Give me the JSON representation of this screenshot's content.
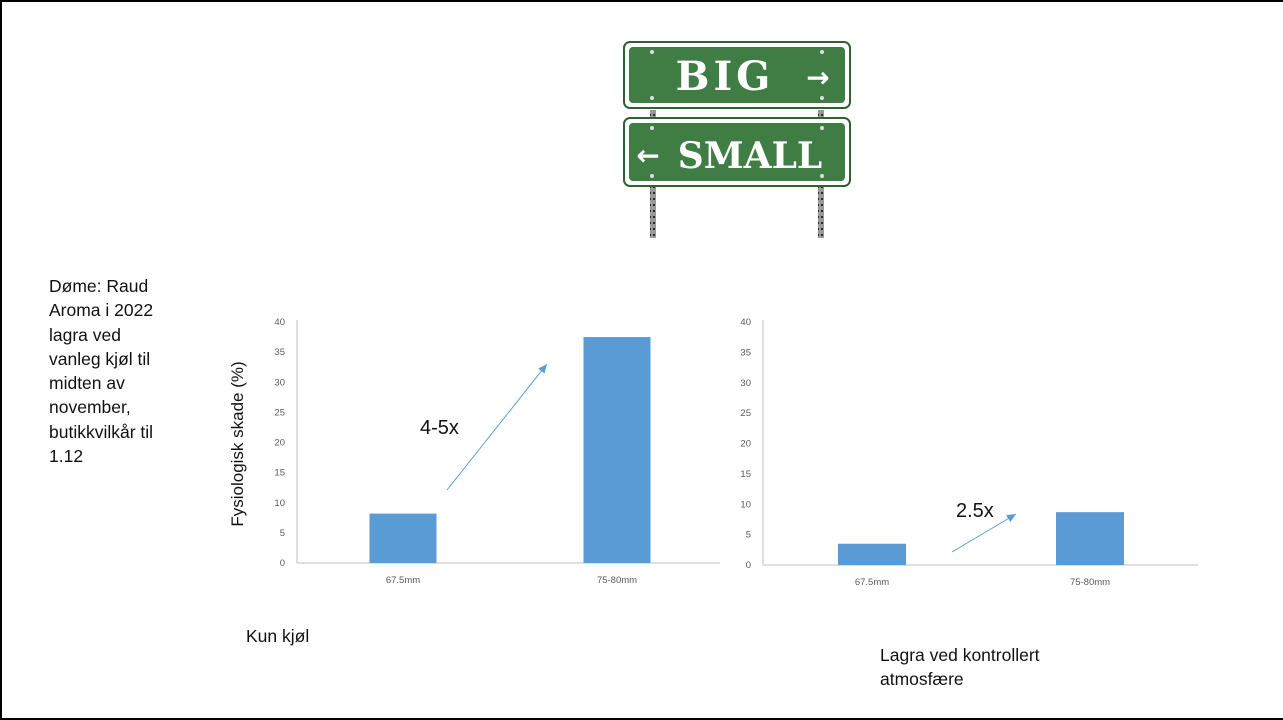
{
  "side_text": "Døme: Raud\nAroma i 2022\nlagra ved\nvanleg kjøl til\nmidten av\nnovember,\nbutikkvilkår  til\n1.12",
  "sign": {
    "top_text": "BIG",
    "bottom_text": "SMALL",
    "color": "#3f7d45"
  },
  "bar_color": "#5b9bd5",
  "arrow_color": "#5b9bd5",
  "chart_data": [
    {
      "type": "bar",
      "categories": [
        "67.5mm",
        "75-80mm"
      ],
      "values": [
        8.2,
        37.5
      ],
      "ylabel": "Fysiologisk skade (%)",
      "ylim": [
        0,
        40
      ],
      "yticks": [
        0,
        5,
        10,
        15,
        20,
        25,
        30,
        35,
        40
      ],
      "annotation": "4-5x",
      "caption": "Kun kjøl"
    },
    {
      "type": "bar",
      "categories": [
        "67.5mm",
        "75-80mm"
      ],
      "values": [
        3.5,
        8.7
      ],
      "ylabel": "",
      "ylim": [
        0,
        40
      ],
      "yticks": [
        0,
        5,
        10,
        15,
        20,
        25,
        30,
        35,
        40
      ],
      "annotation": "2.5x",
      "caption": "Lagra ved kontrollert atmosfære"
    }
  ]
}
